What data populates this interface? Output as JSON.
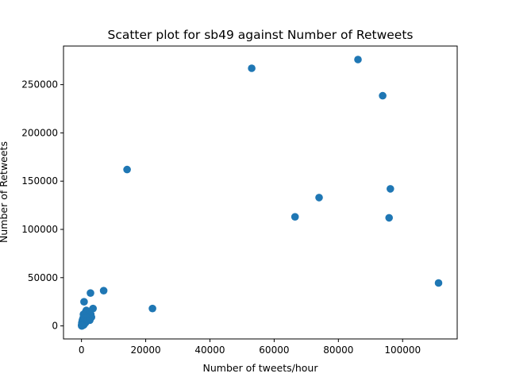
{
  "chart_data": {
    "type": "scatter",
    "title": "Scatter plot for sb49 against Number of Retweets",
    "xlabel": "Number of tweets/hour",
    "ylabel": "Number of Retweets",
    "xlim": [
      -5600,
      117000
    ],
    "ylim": [
      -13500,
      290000
    ],
    "xticks": [
      0,
      20000,
      40000,
      60000,
      80000,
      100000
    ],
    "xtick_labels": [
      "0",
      "20000",
      "40000",
      "60000",
      "80000",
      "100000"
    ],
    "yticks": [
      0,
      50000,
      100000,
      150000,
      200000,
      250000
    ],
    "ytick_labels": [
      "0",
      "50000",
      "100000",
      "150000",
      "200000",
      "250000"
    ],
    "grid": false,
    "legend": "none",
    "marker_color": "#1f77b4",
    "series": [
      {
        "x": [
          86100,
          53000,
          93800,
          14200,
          96200,
          74000,
          66500,
          95800,
          111200,
          6900,
          2800,
          22100,
          3600,
          800,
          1500,
          2300,
          2900,
          3100,
          1200,
          1800,
          2600,
          600,
          900,
          1400,
          2000,
          500,
          800,
          1100,
          1700,
          300,
          600,
          900,
          1300,
          200,
          400,
          700,
          1000,
          100,
          300,
          500,
          800,
          100,
          200,
          400,
          600,
          50,
          150,
          300,
          100,
          200,
          50,
          100
        ],
        "y": [
          276000,
          267000,
          238500,
          162000,
          142000,
          133000,
          113000,
          112000,
          44500,
          36500,
          34000,
          18000,
          18000,
          25000,
          16000,
          15000,
          12000,
          9000,
          14000,
          11000,
          6000,
          12000,
          9000,
          10000,
          7500,
          8000,
          6500,
          8000,
          5000,
          6000,
          5000,
          4500,
          3500,
          4000,
          3000,
          3500,
          2500,
          3000,
          2500,
          2000,
          1500,
          1500,
          1200,
          1000,
          800,
          800,
          500,
          600,
          300,
          200,
          100,
          0
        ]
      }
    ]
  }
}
